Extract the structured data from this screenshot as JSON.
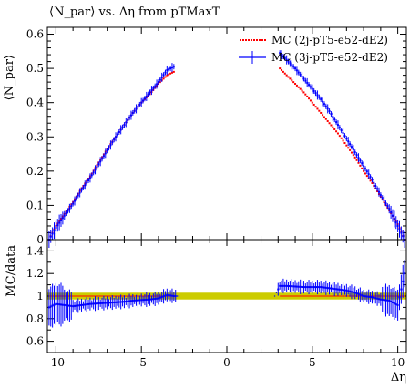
{
  "chart_data": [
    {
      "type": "scatter",
      "title": "⟨N_par⟩ vs. Δη from pTMaxT",
      "xlabel": "",
      "ylabel": "⟨N_par⟩",
      "xlim": [
        -10.5,
        10.5
      ],
      "ylim": [
        0,
        0.62
      ],
      "x_ticks": [
        "-10",
        "-5",
        "0",
        "5",
        "10"
      ],
      "y_ticks": [
        "0",
        "0.1",
        "0.2",
        "0.3",
        "0.4",
        "0.5",
        "0.6"
      ],
      "legend_position": "top-right",
      "series": [
        {
          "name": "MC (2j-pT5-e52-dE2)",
          "color": "#ff0000",
          "points": [
            [
              -10.4,
              0.0
            ],
            [
              -10.0,
              0.04
            ],
            [
              -9.5,
              0.075
            ],
            [
              -9.0,
              0.11
            ],
            [
              -8.5,
              0.15
            ],
            [
              -8.0,
              0.185
            ],
            [
              -7.5,
              0.225
            ],
            [
              -7.0,
              0.265
            ],
            [
              -6.5,
              0.3
            ],
            [
              -6.0,
              0.335
            ],
            [
              -5.5,
              0.37
            ],
            [
              -5.0,
              0.4
            ],
            [
              -4.5,
              0.425
            ],
            [
              -4.0,
              0.455
            ],
            [
              -3.5,
              0.48
            ],
            [
              -3.1,
              0.49
            ],
            [
              3.1,
              0.5
            ],
            [
              3.5,
              0.48
            ],
            [
              4.0,
              0.455
            ],
            [
              4.5,
              0.43
            ],
            [
              5.0,
              0.4
            ],
            [
              5.5,
              0.37
            ],
            [
              6.0,
              0.34
            ],
            [
              6.5,
              0.31
            ],
            [
              7.0,
              0.275
            ],
            [
              7.5,
              0.24
            ],
            [
              8.0,
              0.2
            ],
            [
              8.5,
              0.165
            ],
            [
              9.0,
              0.125
            ],
            [
              9.5,
              0.085
            ],
            [
              10.0,
              0.045
            ],
            [
              10.4,
              0.0
            ]
          ]
        },
        {
          "name": "MC (3j-pT5-e52-dE2)",
          "color": "#0000ff",
          "points": [
            [
              -10.4,
              0.0
            ],
            [
              -10.0,
              0.035
            ],
            [
              -9.5,
              0.07
            ],
            [
              -9.0,
              0.105
            ],
            [
              -8.5,
              0.145
            ],
            [
              -8.0,
              0.18
            ],
            [
              -7.5,
              0.22
            ],
            [
              -7.0,
              0.26
            ],
            [
              -6.5,
              0.3
            ],
            [
              -6.0,
              0.335
            ],
            [
              -5.5,
              0.37
            ],
            [
              -5.0,
              0.4
            ],
            [
              -4.5,
              0.43
            ],
            [
              -4.0,
              0.46
            ],
            [
              -3.5,
              0.495
            ],
            [
              -3.1,
              0.505
            ],
            [
              3.1,
              0.545
            ],
            [
              3.5,
              0.525
            ],
            [
              4.0,
              0.5
            ],
            [
              4.5,
              0.47
            ],
            [
              5.0,
              0.44
            ],
            [
              5.5,
              0.41
            ],
            [
              6.0,
              0.375
            ],
            [
              6.5,
              0.335
            ],
            [
              7.0,
              0.295
            ],
            [
              7.5,
              0.255
            ],
            [
              8.0,
              0.215
            ],
            [
              8.5,
              0.175
            ],
            [
              9.0,
              0.13
            ],
            [
              9.5,
              0.09
            ],
            [
              10.0,
              0.04
            ],
            [
              10.4,
              0.0
            ]
          ]
        }
      ]
    },
    {
      "type": "scatter",
      "xlabel": "Δη",
      "ylabel": "MC/data",
      "xlim": [
        -10.5,
        10.5
      ],
      "ylim": [
        0.5,
        1.5
      ],
      "x_ticks": [
        "-10",
        "-5",
        "0",
        "5",
        "10"
      ],
      "y_ticks": [
        "0.6",
        "0.8",
        "1",
        "1.2",
        "1.4"
      ],
      "reference_band": [
        0.97,
        1.03
      ],
      "band_color": "#cccc00",
      "series": [
        {
          "color": "#ff0000",
          "points": [
            [
              -10.4,
              1.0
            ],
            [
              -3.1,
              1.0
            ],
            [
              3.1,
              1.0
            ],
            [
              10.4,
              1.0
            ]
          ]
        },
        {
          "color": "#0000ff",
          "points": [
            [
              -10.4,
              0.9
            ],
            [
              -10.0,
              0.93
            ],
            [
              -9.5,
              0.92
            ],
            [
              -9.0,
              0.91
            ],
            [
              -8.5,
              0.92
            ],
            [
              -8.0,
              0.93
            ],
            [
              -7.5,
              0.935
            ],
            [
              -7.0,
              0.94
            ],
            [
              -6.5,
              0.945
            ],
            [
              -6.0,
              0.95
            ],
            [
              -5.5,
              0.96
            ],
            [
              -5.0,
              0.965
            ],
            [
              -4.5,
              0.97
            ],
            [
              -4.0,
              0.98
            ],
            [
              -3.5,
              1.01
            ],
            [
              -3.1,
              1.0
            ],
            [
              -2.8,
              1.0
            ],
            [
              2.8,
              1.0
            ],
            [
              3.1,
              1.09
            ],
            [
              3.5,
              1.09
            ],
            [
              4.0,
              1.085
            ],
            [
              4.5,
              1.08
            ],
            [
              5.0,
              1.08
            ],
            [
              5.5,
              1.08
            ],
            [
              6.0,
              1.07
            ],
            [
              6.5,
              1.06
            ],
            [
              7.0,
              1.05
            ],
            [
              7.5,
              1.03
            ],
            [
              8.0,
              1.0
            ],
            [
              8.5,
              0.99
            ],
            [
              9.0,
              0.97
            ],
            [
              9.5,
              0.96
            ],
            [
              10.0,
              0.92
            ],
            [
              10.4,
              1.2
            ]
          ]
        }
      ]
    }
  ]
}
